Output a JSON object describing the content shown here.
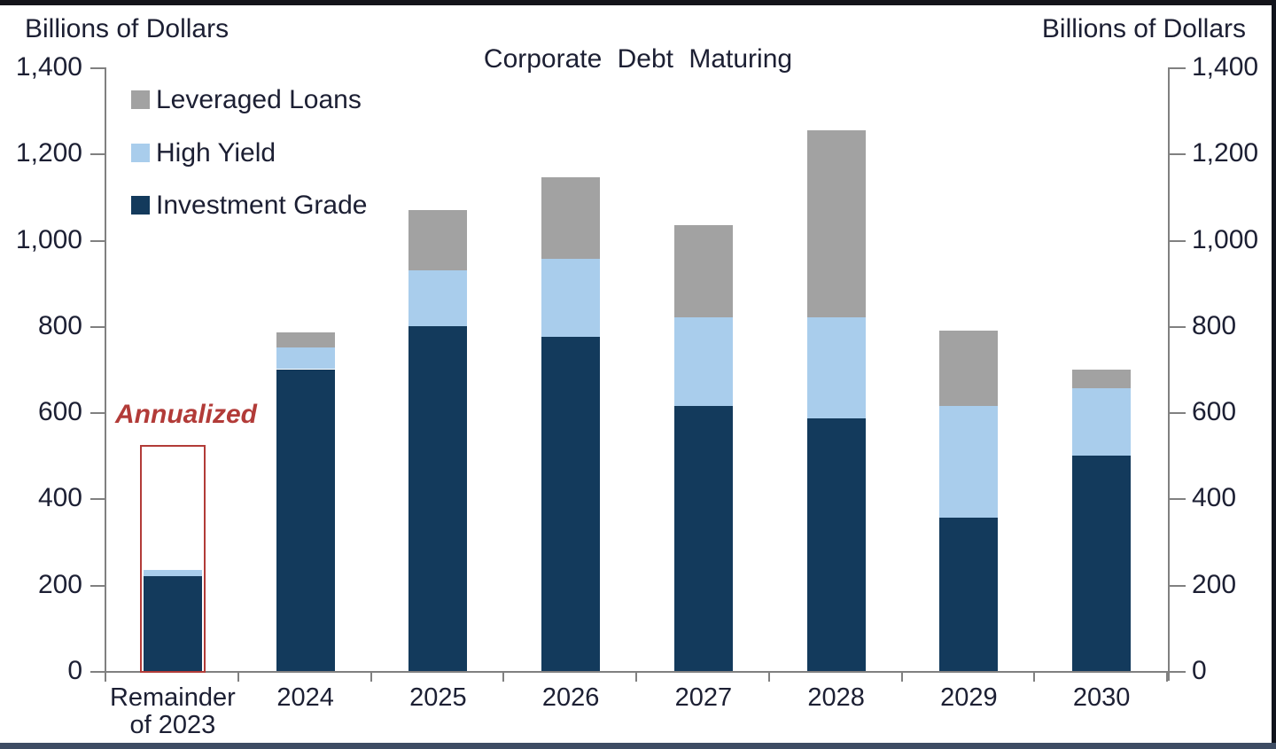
{
  "header": {
    "billions_left": "Billions of Dollars",
    "title": "Corporate Debt Maturing",
    "billions_right": "Billions of Dollars"
  },
  "chart_data": {
    "type": "bar",
    "stacked": true,
    "title": "Corporate Debt Maturing",
    "units": "Billions of Dollars",
    "ylim": [
      0,
      1400
    ],
    "ytick_step": 200,
    "ytick_labels": [
      "0",
      "200",
      "400",
      "600",
      "800",
      "1,000",
      "1,200",
      "1,400"
    ],
    "categories": [
      [
        "Remainder",
        "of 2023"
      ],
      [
        "2024"
      ],
      [
        "2025"
      ],
      [
        "2026"
      ],
      [
        "2027"
      ],
      [
        "2028"
      ],
      [
        "2029"
      ],
      [
        "2030"
      ]
    ],
    "series": [
      {
        "name": "Investment Grade",
        "color": "#133A5C",
        "values": [
          220,
          700,
          800,
          775,
          615,
          585,
          355,
          500
        ]
      },
      {
        "name": "High Yield",
        "color": "#A9CDEC",
        "values": [
          15,
          50,
          130,
          180,
          205,
          235,
          260,
          155
        ]
      },
      {
        "name": "Leveraged Loans",
        "color": "#A2A2A2",
        "values": [
          0,
          35,
          140,
          190,
          215,
          435,
          175,
          45
        ]
      }
    ],
    "legend_order": [
      "Leveraged Loans",
      "High Yield",
      "Investment Grade"
    ],
    "annotation": {
      "label": "Annualized",
      "category_index": 0,
      "outline_top_value": 525,
      "color": "#B23B38"
    },
    "colors": {
      "investment_grade": "#133A5C",
      "high_yield": "#A9CDEC",
      "leveraged_loans": "#A2A2A2",
      "annualized_red": "#B23B38",
      "axis_gray": "#808080"
    }
  }
}
